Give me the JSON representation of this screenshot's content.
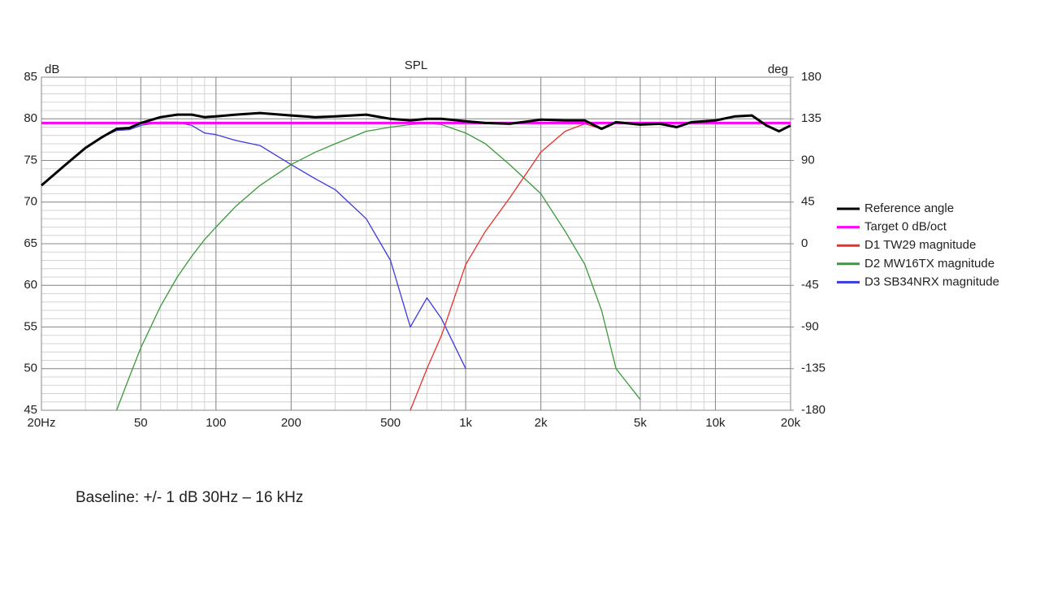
{
  "chart_data": {
    "type": "line",
    "title": "SPL",
    "ylabel": "dB",
    "y2label": "deg",
    "x_scale": "log",
    "grid": true,
    "legend": "right",
    "x": [
      20,
      25,
      30,
      35,
      40,
      45,
      50,
      60,
      70,
      80,
      90,
      100,
      120,
      150,
      200,
      250,
      300,
      400,
      500,
      600,
      700,
      800,
      1000,
      1200,
      1500,
      2000,
      2500,
      3000,
      3500,
      4000,
      5000,
      6000,
      7000,
      8000,
      10000,
      12000,
      14000,
      16000,
      18000,
      20000
    ],
    "xlim": [
      20,
      20000
    ],
    "xticks": [
      {
        "value": 20,
        "label": "20Hz"
      },
      50,
      100,
      200,
      500,
      {
        "value": 1000,
        "label": "1k"
      },
      {
        "value": 2000,
        "label": "2k"
      },
      {
        "value": 5000,
        "label": "5k"
      },
      {
        "value": 10000,
        "label": "10k"
      },
      {
        "value": 20000,
        "label": "20k"
      }
    ],
    "ylim": [
      45,
      85
    ],
    "yticks": [
      45,
      50,
      55,
      60,
      65,
      70,
      75,
      80,
      85
    ],
    "y2lim": [
      -180,
      180
    ],
    "y2ticks": [
      -180,
      -135,
      -90,
      -45,
      0,
      45,
      90,
      135,
      180
    ],
    "series": [
      {
        "name": "Reference angle",
        "color": "#000000",
        "width": 3,
        "values": [
          72,
          74.5,
          76.5,
          77.8,
          78.8,
          78.9,
          79.5,
          80.2,
          80.5,
          80.5,
          80.2,
          80.3,
          80.5,
          80.7,
          80.4,
          80.2,
          80.3,
          80.5,
          80.0,
          79.8,
          80.0,
          80.0,
          79.7,
          79.5,
          79.4,
          79.9,
          79.8,
          79.8,
          78.8,
          79.6,
          79.3,
          79.4,
          79.0,
          79.6,
          79.8,
          80.3,
          80.4,
          79.2,
          78.5,
          79.2
        ]
      },
      {
        "name": "Target 0 dB/oct",
        "color": "#ff00ff",
        "width": 3,
        "values": [
          79.5,
          79.5,
          79.5,
          79.5,
          79.5,
          79.5,
          79.5,
          79.5,
          79.5,
          79.5,
          79.5,
          79.5,
          79.5,
          79.5,
          79.5,
          79.5,
          79.5,
          79.5,
          79.5,
          79.5,
          79.5,
          79.5,
          79.5,
          79.5,
          79.5,
          79.5,
          79.5,
          79.5,
          79.5,
          79.5,
          79.5,
          79.5,
          79.5,
          79.5,
          79.5,
          79.5,
          79.5,
          79.5,
          79.5,
          79.5
        ]
      },
      {
        "name": "D1 TW29 magnitude",
        "color": "#e8302a",
        "width": 1.3,
        "values": [
          null,
          null,
          null,
          null,
          null,
          null,
          null,
          null,
          null,
          null,
          null,
          null,
          null,
          null,
          null,
          null,
          null,
          null,
          null,
          45,
          50,
          54,
          62.5,
          66.5,
          70.5,
          76,
          78.5,
          79.4,
          78.8,
          79.6,
          79.3,
          79.4,
          79.0,
          79.6,
          79.8,
          80.3,
          80.4,
          79.2,
          78.5,
          79.2
        ]
      },
      {
        "name": "D2 MW16TX magnitude",
        "color": "#3a9a3a",
        "width": 1.3,
        "values": [
          null,
          null,
          null,
          null,
          45,
          49,
          52.5,
          57.5,
          61,
          63.5,
          65.5,
          67,
          69.5,
          72,
          74.5,
          76,
          77,
          78.5,
          79,
          79.3,
          79.5,
          79.3,
          78.3,
          77,
          74.5,
          71,
          66.5,
          62.5,
          57,
          50,
          46.3,
          null,
          null,
          null,
          null,
          null,
          null,
          null,
          null,
          null
        ]
      },
      {
        "name": "D3 SB34NRX magnitude",
        "color": "#3a3adf",
        "width": 1.3,
        "values": [
          72,
          74.5,
          76.5,
          77.8,
          78.6,
          78.7,
          79.2,
          79.6,
          79.6,
          79.2,
          78.3,
          78.1,
          77.4,
          76.8,
          74.5,
          72.8,
          71.5,
          68,
          63,
          55,
          58.5,
          56,
          50,
          null,
          null,
          null,
          null,
          null,
          null,
          null,
          null,
          null,
          null,
          null,
          null,
          null,
          null,
          null,
          null,
          null
        ]
      }
    ],
    "caption": "Baseline:  +/- 1 dB 30Hz – 16 kHz"
  }
}
